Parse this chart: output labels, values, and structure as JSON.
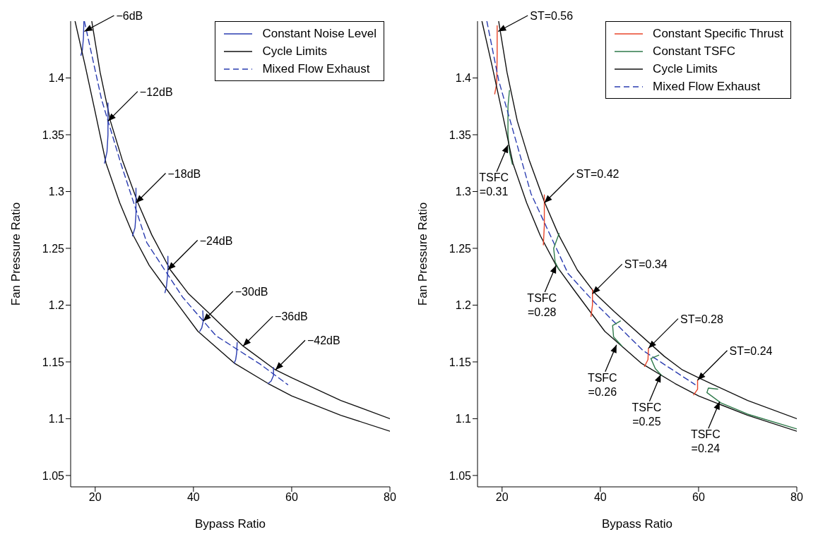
{
  "chart_data": [
    {
      "type": "line",
      "xlabel": "Bypass Ratio",
      "ylabel": "Fan Pressure Ratio",
      "xlim": [
        15,
        80
      ],
      "ylim": [
        1.04,
        1.45
      ],
      "xticks": [
        20,
        40,
        60,
        80
      ],
      "yticks": [
        1.05,
        1.1,
        1.15,
        1.2,
        1.25,
        1.3,
        1.35,
        1.4
      ],
      "legend": "top right",
      "line_style": "solid",
      "annotations": [
        {
          "text": "−6dB",
          "x": 17.8,
          "y": 1.441
        },
        {
          "text": "−12dB",
          "x": 22.6,
          "y": 1.362
        },
        {
          "text": "−18dB",
          "x": 28.3,
          "y": 1.29
        },
        {
          "text": "−24dB",
          "x": 34.8,
          "y": 1.231
        },
        {
          "text": "−30dB",
          "x": 42.0,
          "y": 1.186
        },
        {
          "text": "−36dB",
          "x": 50.1,
          "y": 1.164
        },
        {
          "text": "−42dB",
          "x": 56.7,
          "y": 1.143
        }
      ],
      "series": [
        {
          "name": "Constant Noise Level",
          "color": "#2a3cb0",
          "x": [
            17.7,
            17.6,
            17.4,
            17.1
          ],
          "values": [
            1.45,
            1.435,
            1.425,
            1.42
          ]
        },
        {
          "name": "Cycle Limits",
          "color": "#111111",
          "x": [
            19.3,
            21,
            23.1,
            25.5,
            28.7,
            31.5,
            35.3,
            39,
            42.9,
            50.1,
            56.7,
            60,
            70,
            80
          ],
          "values": [
            1.45,
            1.405,
            1.362,
            1.328,
            1.29,
            1.262,
            1.231,
            1.21,
            1.194,
            1.164,
            1.143,
            1.136,
            1.116,
            1.1
          ]
        },
        {
          "name": "Mixed Flow Exhaust",
          "color": "#2a3cb0",
          "line_style": "dashed",
          "x": [
            17.8,
            21.3,
            25.2,
            30.5,
            37.8,
            44.6,
            53.6,
            59.2
          ],
          "values": [
            1.45,
            1.381,
            1.325,
            1.255,
            1.207,
            1.173,
            1.148,
            1.13
          ]
        },
        {
          "color": "#111111",
          "x": [
            15.9,
            18,
            20,
            22.2,
            25,
            27.8,
            31,
            34.7,
            40.9,
            48.3,
            55.2,
            60,
            70,
            80
          ],
          "values": [
            1.45,
            1.41,
            1.37,
            1.325,
            1.29,
            1.261,
            1.235,
            1.213,
            1.177,
            1.149,
            1.131,
            1.12,
            1.103,
            1.089
          ]
        },
        {
          "color": "#2a3cb0",
          "x": [
            22.6,
            22.6,
            22.6,
            22.4,
            21.9
          ],
          "values": [
            1.378,
            1.362,
            1.35,
            1.335,
            1.325
          ]
        },
        {
          "color": "#2a3cb0",
          "x": [
            28.3,
            28.3,
            28.3,
            28.1,
            27.6
          ],
          "values": [
            1.303,
            1.29,
            1.28,
            1.268,
            1.261
          ]
        },
        {
          "color": "#2a3cb0",
          "x": [
            34.8,
            34.8,
            34.7,
            34.5,
            34.2
          ],
          "values": [
            1.243,
            1.231,
            1.225,
            1.216,
            1.211
          ]
        },
        {
          "color": "#2a3cb0",
          "x": [
            41.9,
            42.0,
            41.7,
            41.3
          ],
          "values": [
            1.195,
            1.186,
            1.18,
            1.177
          ]
        },
        {
          "color": "#2a3cb0",
          "x": [
            48.9,
            48.8,
            48.6,
            48.3
          ],
          "values": [
            1.167,
            1.158,
            1.152,
            1.149
          ]
        },
        {
          "color": "#2a3cb0",
          "x": [
            56.3,
            56.3,
            55.8,
            55.2
          ],
          "values": [
            1.145,
            1.138,
            1.133,
            1.131
          ]
        }
      ]
    },
    {
      "type": "line",
      "xlabel": "Bypass Ratio",
      "ylabel": "Fan Pressure Ratio",
      "xlim": [
        15,
        80
      ],
      "ylim": [
        1.04,
        1.45
      ],
      "xticks": [
        20,
        40,
        60,
        80
      ],
      "yticks": [
        1.05,
        1.1,
        1.15,
        1.2,
        1.25,
        1.3,
        1.35,
        1.4
      ],
      "legend": "top right",
      "line_style": "solid",
      "annotations": [
        {
          "text": "ST=0.56",
          "x": 19.2,
          "y": 1.441
        },
        {
          "text": "ST=0.42",
          "x": 28.6,
          "y": 1.29
        },
        {
          "text": "ST=0.34",
          "x": 38.4,
          "y": 1.21
        },
        {
          "text": "ST=0.28",
          "x": 49.8,
          "y": 1.162
        },
        {
          "text": "ST=0.24",
          "x": 59.8,
          "y": 1.134
        },
        {
          "text": "TSFC\n=0.31",
          "x": 21.2,
          "y": 1.341
        },
        {
          "text": "TSFC\n=0.28",
          "x": 31.0,
          "y": 1.235
        },
        {
          "text": "TSFC\n=0.26",
          "x": 43.3,
          "y": 1.165
        },
        {
          "text": "TSFC\n=0.25",
          "x": 52.3,
          "y": 1.139
        },
        {
          "text": "TSFC\n=0.24",
          "x": 64.3,
          "y": 1.115
        }
      ],
      "series": [
        {
          "name": "Constant Specific Thrust",
          "color": "#e8452a",
          "x": [
            19.0,
            19.0,
            18.9,
            18.5
          ],
          "values": [
            1.446,
            1.42,
            1.395,
            1.386
          ]
        },
        {
          "name": "Constant TSFC",
          "color": "#2e7a4a",
          "x": [
            21.5,
            21.2,
            21.2,
            21.5,
            22.1
          ],
          "values": [
            1.389,
            1.375,
            1.35,
            1.335,
            1.324
          ]
        },
        {
          "name": "Cycle Limits",
          "color": "#111111",
          "x": [
            19.3,
            21,
            23.1,
            25.5,
            28.7,
            31.5,
            35.3,
            39,
            42.9,
            53,
            56.7,
            60,
            70,
            80
          ],
          "values": [
            1.45,
            1.405,
            1.362,
            1.328,
            1.29,
            1.262,
            1.231,
            1.21,
            1.194,
            1.155,
            1.143,
            1.136,
            1.116,
            1.1
          ]
        },
        {
          "name": "Mixed Flow Exhaust",
          "color": "#2a3cb0",
          "line_style": "dashed",
          "x": [
            16.9,
            19.3,
            25.9,
            33.4,
            38.9,
            48.7,
            59.3
          ],
          "values": [
            1.45,
            1.398,
            1.298,
            1.228,
            1.202,
            1.16,
            1.13
          ]
        },
        {
          "color": "#111111",
          "x": [
            15.9,
            18,
            20,
            22.2,
            25,
            27.8,
            31,
            34.7,
            40.9,
            48.3,
            55.2,
            60,
            70,
            80
          ],
          "values": [
            1.45,
            1.41,
            1.37,
            1.325,
            1.29,
            1.261,
            1.235,
            1.213,
            1.177,
            1.149,
            1.131,
            1.12,
            1.103,
            1.089
          ]
        },
        {
          "color": "#e8452a",
          "x": [
            28.6,
            28.6,
            28.6,
            28.4
          ],
          "values": [
            1.297,
            1.29,
            1.27,
            1.253
          ]
        },
        {
          "color": "#e8452a",
          "x": [
            38.4,
            38.4,
            38.4,
            38.1
          ],
          "values": [
            1.214,
            1.21,
            1.2,
            1.19
          ]
        },
        {
          "color": "#e8452a",
          "x": [
            49.8,
            49.7,
            49.0
          ],
          "values": [
            1.162,
            1.152,
            1.146
          ]
        },
        {
          "color": "#e8452a",
          "x": [
            59.8,
            59.8,
            59.0
          ],
          "values": [
            1.134,
            1.126,
            1.121
          ]
        },
        {
          "color": "#2e7a4a",
          "x": [
            31.6,
            30.5,
            30.8,
            31.6
          ],
          "values": [
            1.263,
            1.25,
            1.238,
            1.231
          ]
        },
        {
          "color": "#2e7a4a",
          "x": [
            44.1,
            42.5,
            42.7,
            44.4
          ],
          "values": [
            1.186,
            1.182,
            1.172,
            1.164
          ]
        },
        {
          "color": "#2e7a4a",
          "x": [
            51.9,
            50.3,
            51.2,
            52.5
          ],
          "values": [
            1.156,
            1.153,
            1.144,
            1.138
          ]
        },
        {
          "color": "#2e7a4a",
          "x": [
            63.9,
            62.0,
            61.7,
            64.5,
            70,
            80
          ],
          "values": [
            1.126,
            1.127,
            1.123,
            1.114,
            1.104,
            1.091
          ]
        }
      ]
    }
  ]
}
